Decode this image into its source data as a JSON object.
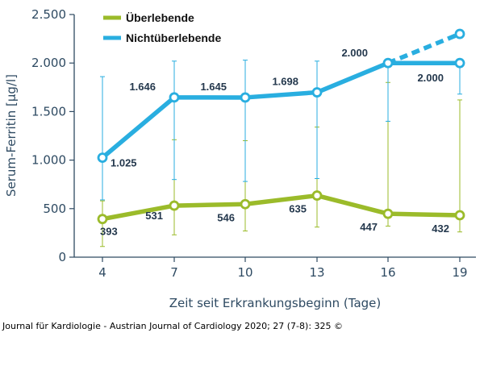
{
  "chart_data": {
    "type": "line",
    "title": "",
    "xlabel": "Zeit seit Erkrankungsbeginn (Tage)",
    "ylabel": "Serum-Ferritin [µg/l]",
    "x": [
      4,
      7,
      10,
      13,
      16,
      19
    ],
    "x_tick_labels": [
      "4",
      "7",
      "10",
      "13",
      "16",
      "19"
    ],
    "ylim": [
      0,
      2500
    ],
    "y_ticks": [
      0,
      500,
      1000,
      1500,
      2000,
      2500
    ],
    "y_tick_labels": [
      "0",
      "500",
      "1.000",
      "1.500",
      "2.000",
      "2.500"
    ],
    "legend_position": "top-left",
    "series": [
      {
        "name": "Überlebende",
        "color": "#9bbb2a",
        "values": [
          393,
          531,
          546,
          635,
          447,
          432
        ],
        "point_labels": [
          "393",
          "531",
          "546",
          "635",
          "447",
          "432"
        ],
        "error_upper": [
          580,
          1210,
          1200,
          1340,
          1800,
          1620
        ],
        "error_lower": [
          110,
          230,
          270,
          310,
          320,
          260
        ]
      },
      {
        "name": "Nichtüberlebende",
        "color": "#29aee0",
        "values": [
          1025,
          1646,
          1645,
          1698,
          2000,
          2000
        ],
        "point_labels": [
          "1.025",
          "1.646",
          "1.645",
          "1.698",
          "2.000",
          "2.000"
        ],
        "error_upper": [
          1860,
          2020,
          2030,
          2020,
          2010,
          2000
        ],
        "error_lower": [
          590,
          800,
          780,
          810,
          1400,
          1680
        ],
        "extension_dashed": {
          "x": 19,
          "value": 2300
        }
      }
    ]
  },
  "source_note": "Journal für Kardiologie - Austrian Journal of Cardiology 2020; 27 (7-8): 325 ©"
}
